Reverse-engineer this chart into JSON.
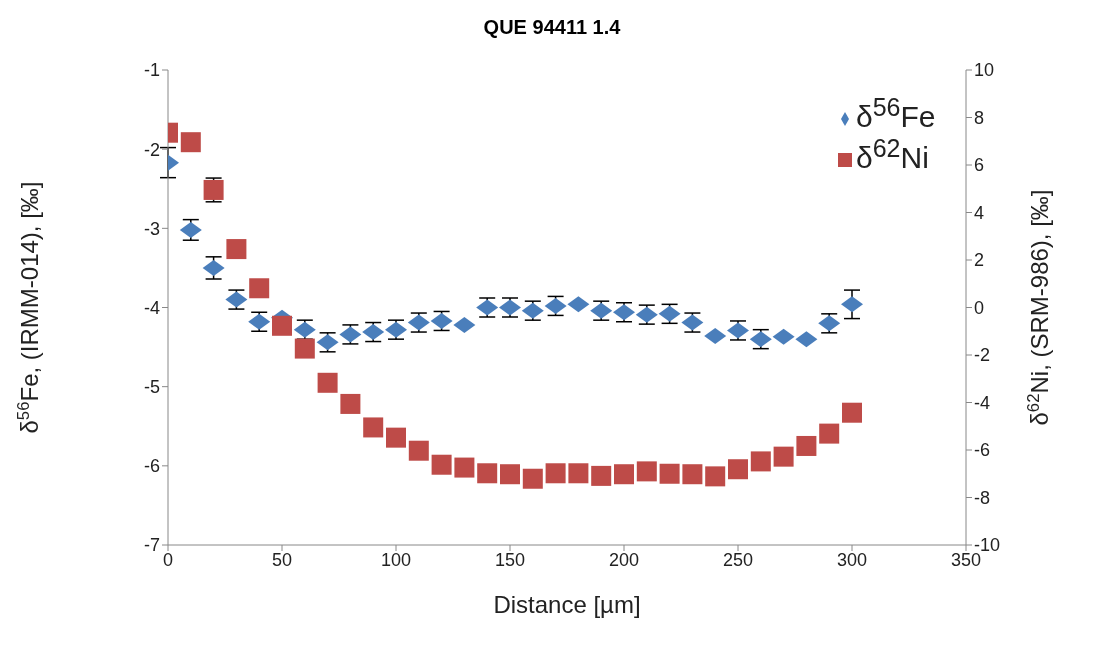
{
  "chart_data": {
    "type": "scatter",
    "title": "QUE 94411 1.4",
    "xlabel": "Distance [µm]",
    "ylabel": "δ$^{56}$Fe, (IRMM-014), [‰]",
    "y2label": "δ$^{62}$Ni, (SRM-986), [‰]",
    "x": [
      0,
      10,
      20,
      30,
      40,
      50,
      60,
      70,
      80,
      90,
      100,
      110,
      120,
      130,
      140,
      150,
      160,
      170,
      180,
      190,
      200,
      210,
      220,
      230,
      240,
      250,
      260,
      270,
      280,
      290,
      300
    ],
    "series": [
      {
        "name": "δ$^{56}$Fe",
        "color": "#4a7ebb",
        "marker": "diamond",
        "values": [
          -2.17,
          -3.02,
          -3.5,
          -3.9,
          -4.18,
          -4.13,
          -4.28,
          -4.44,
          -4.34,
          -4.31,
          -4.28,
          -4.19,
          -4.17,
          -4.22,
          -4.0,
          -4.0,
          -4.04,
          -3.98,
          -3.96,
          -4.04,
          -4.06,
          -4.09,
          -4.08,
          -4.19,
          -4.36,
          -4.29,
          -4.4,
          -4.37,
          -4.4,
          -4.2,
          -3.96
        ],
        "errors": [
          0.19,
          0.13,
          0.14,
          0.12,
          0.12,
          null,
          0.12,
          0.12,
          0.12,
          0.12,
          0.12,
          0.12,
          0.12,
          null,
          0.12,
          0.12,
          0.12,
          0.12,
          null,
          0.12,
          0.12,
          0.12,
          0.12,
          0.12,
          null,
          0.12,
          0.12,
          null,
          null,
          0.12,
          0.18
        ]
      },
      {
        "name": "δ$^{62}$Ni",
        "color": "#be4b48",
        "marker": "square",
        "axis": "y2",
        "values": [
          7.36,
          6.96,
          4.95,
          2.46,
          0.81,
          -0.77,
          -1.73,
          -3.17,
          -4.06,
          -5.05,
          -5.48,
          -6.03,
          -6.62,
          -6.74,
          -6.98,
          -7.02,
          -7.21,
          -6.98,
          -6.98,
          -7.09,
          -7.02,
          -6.9,
          -7.0,
          -7.02,
          -7.11,
          -6.81,
          -6.48,
          -6.28,
          -5.83,
          -5.31,
          -4.43
        ],
        "errors": [
          null,
          null,
          0.5,
          null,
          null,
          null,
          null,
          null,
          null,
          null,
          null,
          null,
          null,
          null,
          null,
          null,
          null,
          null,
          null,
          null,
          null,
          null,
          null,
          null,
          null,
          null,
          null,
          null,
          null,
          null,
          null
        ]
      }
    ],
    "xlim": [
      0,
      350
    ],
    "xticks": [
      0,
      50,
      100,
      150,
      200,
      250,
      300,
      350
    ],
    "ylim": [
      -7,
      -1
    ],
    "yticks": [
      -7,
      -6,
      -5,
      -4,
      -3,
      -2,
      -1
    ],
    "y2lim": [
      -10,
      10
    ],
    "y2ticks": [
      -10,
      -8,
      -6,
      -4,
      -2,
      0,
      2,
      4,
      6,
      8,
      10
    ],
    "grid": false,
    "legend": "top right"
  }
}
